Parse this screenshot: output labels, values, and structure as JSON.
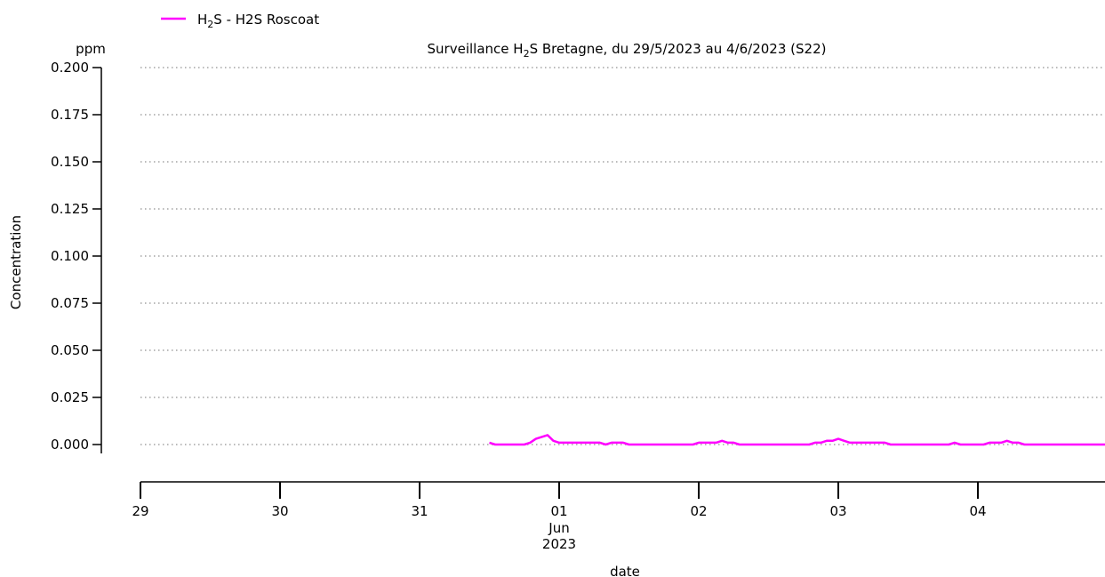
{
  "colors": {
    "series": "#ff00ff",
    "grid": "#b0b0b0",
    "axis": "#000000"
  },
  "chart_data": {
    "type": "line",
    "title": {
      "prefix": "Surveillance H",
      "sub": "2",
      "suffix": "S Bretagne, du 29/5/2023 au 4/6/2023 (S22)"
    },
    "unit_label": "ppm",
    "ylabel": "Concentration",
    "xlabel": "date",
    "ylim": [
      -0.04,
      0.2
    ],
    "xlim": [
      "2023-05-29T00:00",
      "2023-06-04T23:00"
    ],
    "grid": "horizontal dotted",
    "legend": {
      "placement": "top-left",
      "prefix": "H",
      "sub": "2",
      "suffix": "S - H2S Roscoat"
    },
    "yticks": [
      {
        "value": 0.2,
        "label": "0.200"
      },
      {
        "value": 0.175,
        "label": "0.175"
      },
      {
        "value": 0.15,
        "label": "0.150"
      },
      {
        "value": 0.125,
        "label": "0.125"
      },
      {
        "value": 0.1,
        "label": "0.100"
      },
      {
        "value": 0.075,
        "label": "0.075"
      },
      {
        "value": 0.05,
        "label": "0.050"
      },
      {
        "value": 0.025,
        "label": "0.025"
      },
      {
        "value": 0.0,
        "label": "0.000"
      }
    ],
    "xticks": [
      {
        "date": "2023-05-29",
        "label": "29"
      },
      {
        "date": "2023-05-30",
        "label": "30"
      },
      {
        "date": "2023-05-31",
        "label": "31"
      },
      {
        "date": "2023-06-01",
        "label": "01",
        "extra": [
          "Jun",
          "2023"
        ]
      },
      {
        "date": "2023-06-02",
        "label": "02"
      },
      {
        "date": "2023-06-03",
        "label": "03"
      },
      {
        "date": "2023-06-04",
        "label": "04"
      }
    ],
    "series": [
      {
        "name": "H2S - H2S Roscoat",
        "points": [
          [
            "2023-05-31T12:00",
            0.001
          ],
          [
            "2023-05-31T13:00",
            0.0
          ],
          [
            "2023-05-31T16:00",
            0.0
          ],
          [
            "2023-05-31T18:00",
            0.0
          ],
          [
            "2023-05-31T19:00",
            0.001
          ],
          [
            "2023-05-31T20:00",
            0.003
          ],
          [
            "2023-05-31T22:00",
            0.005
          ],
          [
            "2023-05-31T23:00",
            0.002
          ],
          [
            "2023-06-01T00:00",
            0.001
          ],
          [
            "2023-06-01T07:00",
            0.001
          ],
          [
            "2023-06-01T08:00",
            0.0
          ],
          [
            "2023-06-01T09:00",
            0.001
          ],
          [
            "2023-06-01T11:00",
            0.001
          ],
          [
            "2023-06-01T12:00",
            0.0
          ],
          [
            "2023-06-01T23:00",
            0.0
          ],
          [
            "2023-06-02T00:00",
            0.001
          ],
          [
            "2023-06-02T03:00",
            0.001
          ],
          [
            "2023-06-02T04:00",
            0.002
          ],
          [
            "2023-06-02T05:00",
            0.001
          ],
          [
            "2023-06-02T06:00",
            0.001
          ],
          [
            "2023-06-02T07:00",
            0.0
          ],
          [
            "2023-06-02T19:00",
            0.0
          ],
          [
            "2023-06-02T20:00",
            0.001
          ],
          [
            "2023-06-02T21:00",
            0.001
          ],
          [
            "2023-06-02T22:00",
            0.002
          ],
          [
            "2023-06-02T23:00",
            0.002
          ],
          [
            "2023-06-03T00:00",
            0.003
          ],
          [
            "2023-06-03T01:00",
            0.002
          ],
          [
            "2023-06-03T02:00",
            0.001
          ],
          [
            "2023-06-03T08:00",
            0.001
          ],
          [
            "2023-06-03T09:00",
            0.0
          ],
          [
            "2023-06-03T19:00",
            0.0
          ],
          [
            "2023-06-03T20:00",
            0.001
          ],
          [
            "2023-06-03T21:00",
            0.0
          ],
          [
            "2023-06-04T01:00",
            0.0
          ],
          [
            "2023-06-04T02:00",
            0.001
          ],
          [
            "2023-06-04T04:00",
            0.001
          ],
          [
            "2023-06-04T05:00",
            0.002
          ],
          [
            "2023-06-04T06:00",
            0.001
          ],
          [
            "2023-06-04T07:00",
            0.001
          ],
          [
            "2023-06-04T08:00",
            0.0
          ],
          [
            "2023-06-04T23:00",
            0.0
          ]
        ]
      }
    ]
  }
}
